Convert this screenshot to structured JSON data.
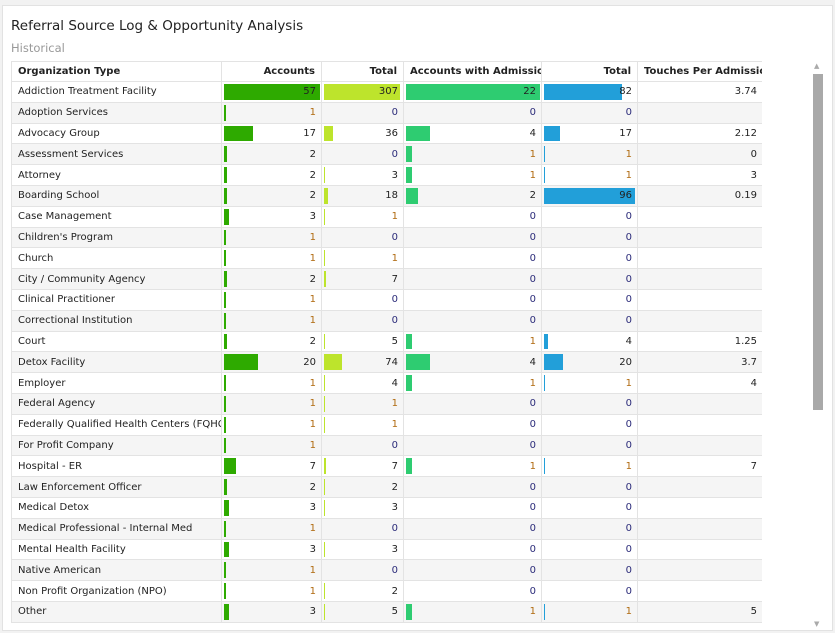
{
  "title": "Referral Source Log & Opportunity Analysis",
  "subtitle": "Historical",
  "colors": {
    "accounts": "#2eaa00",
    "total": "#bde42c",
    "admissions": "#2ecc71",
    "admission_total": "#229fd9"
  },
  "columns": [
    "Organization Type",
    "Accounts",
    "Total",
    "Accounts with Admissions",
    "Total",
    "Touches Per Admission"
  ],
  "rows": [
    [
      "Addiction Treatment Facility",
      "57",
      "307",
      "22",
      "82",
      "3.74"
    ],
    [
      "Adoption Services",
      "1",
      "0",
      "0",
      "0",
      ""
    ],
    [
      "Advocacy Group",
      "17",
      "36",
      "4",
      "17",
      "2.12"
    ],
    [
      "Assessment Services",
      "2",
      "0",
      "1",
      "1",
      "0"
    ],
    [
      "Attorney",
      "2",
      "3",
      "1",
      "1",
      "3"
    ],
    [
      "Boarding School",
      "2",
      "18",
      "2",
      "96",
      "0.19"
    ],
    [
      "Case Management",
      "3",
      "1",
      "0",
      "0",
      ""
    ],
    [
      "Children's Program",
      "1",
      "0",
      "0",
      "0",
      ""
    ],
    [
      "Church",
      "1",
      "1",
      "0",
      "0",
      ""
    ],
    [
      "City / Community Agency",
      "2",
      "7",
      "0",
      "0",
      ""
    ],
    [
      "Clinical Practitioner",
      "1",
      "0",
      "0",
      "0",
      ""
    ],
    [
      "Correctional Institution",
      "1",
      "0",
      "0",
      "0",
      ""
    ],
    [
      "Court",
      "2",
      "5",
      "1",
      "4",
      "1.25"
    ],
    [
      "Detox Facility",
      "20",
      "74",
      "4",
      "20",
      "3.7"
    ],
    [
      "Employer",
      "1",
      "4",
      "1",
      "1",
      "4"
    ],
    [
      "Federal Agency",
      "1",
      "1",
      "0",
      "0",
      ""
    ],
    [
      "Federally Qualified Health Centers (FQHC)",
      "1",
      "1",
      "0",
      "0",
      ""
    ],
    [
      "For Profit Company",
      "1",
      "0",
      "0",
      "0",
      ""
    ],
    [
      "Hospital - ER",
      "7",
      "7",
      "1",
      "1",
      "7"
    ],
    [
      "Law Enforcement Officer",
      "2",
      "2",
      "0",
      "0",
      ""
    ],
    [
      "Medical Detox",
      "3",
      "3",
      "0",
      "0",
      ""
    ],
    [
      "Medical Professional - Internal Med",
      "1",
      "0",
      "0",
      "0",
      ""
    ],
    [
      "Mental Health Facility",
      "3",
      "3",
      "0",
      "0",
      ""
    ],
    [
      "Native American",
      "1",
      "0",
      "0",
      "0",
      ""
    ],
    [
      "Non Profit Organization (NPO)",
      "1",
      "2",
      "0",
      "0",
      ""
    ],
    [
      "Other",
      "3",
      "5",
      "1",
      "1",
      "5"
    ]
  ]
}
